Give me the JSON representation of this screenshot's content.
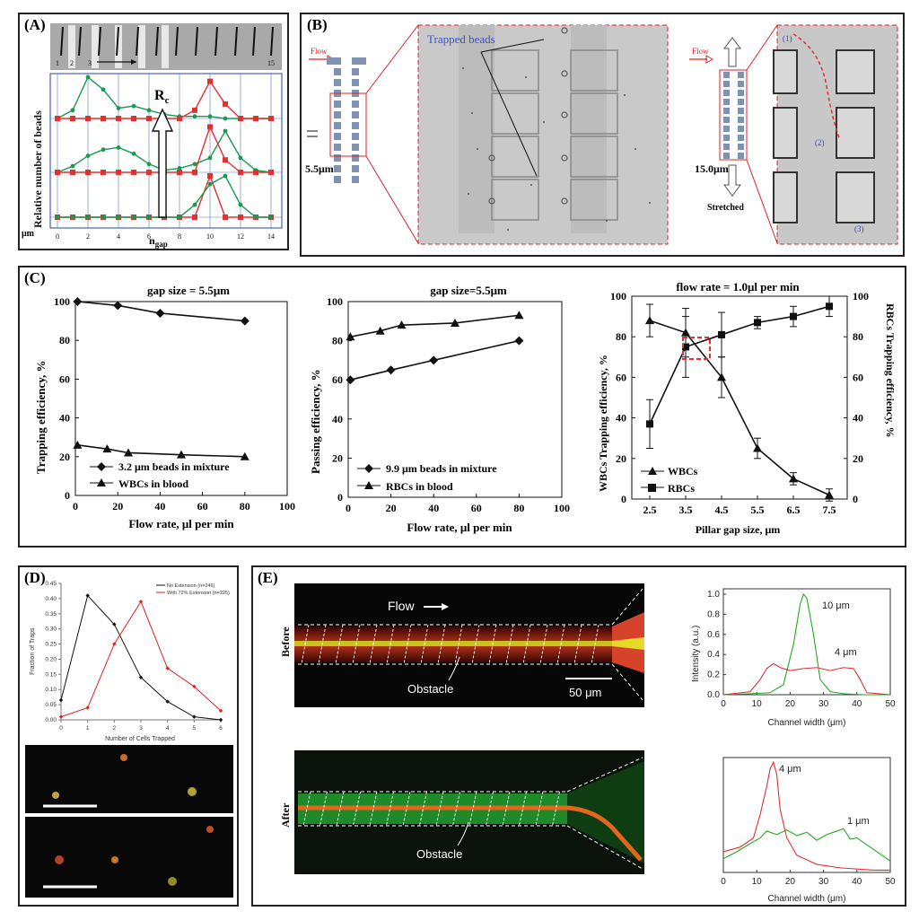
{
  "figure": {
    "panelA": {
      "label": "(A)",
      "strip_numbers": [
        "1",
        "2",
        "3",
        "15"
      ],
      "annotation": "R",
      "annotation_sub": "c",
      "ylabel": "Relative number of beads",
      "unit_label": "μm",
      "xlabel_main": "n",
      "xlabel_sub": "gap"
    },
    "panelB": {
      "label": "(B)",
      "flow_left": "Flow",
      "flow_right": "Flow",
      "gap_left": "5.5μm",
      "gap_right": "15.0μm",
      "stretched": "Stretched",
      "trapped_beads": "Trapped beads",
      "marks": [
        "(1)",
        "(2)",
        "(3)"
      ]
    },
    "panelC": {
      "label": "(C)",
      "chart1": {
        "title": "gap size = 5.5μm",
        "ylabel": "Trapping efficiency, %",
        "xlabel": "Flow rate, μl  per min",
        "legend": [
          "3.2 μm  beads in mixture",
          "WBCs in blood"
        ]
      },
      "chart2": {
        "title": "gap size=5.5μm",
        "ylabel": "Passing efficiency, %",
        "xlabel": "Flow rate, μl  per min",
        "legend": [
          "9.9 μm  beads in mixture",
          "RBCs in blood"
        ]
      },
      "chart3": {
        "title": "flow rate = 1.0μl  per min",
        "ylabel_left": "WBCs Trapping efficiency, %",
        "ylabel_right": "RBCs Trapping efficiency, %",
        "xlabel": "Pillar gap size, μm",
        "legend": [
          "WBCs",
          "RBCs"
        ]
      }
    },
    "panelD": {
      "label": "(D)",
      "ylabel": "Fraction of Traps",
      "xlabel": "Number of Cells Trapped",
      "legend": [
        "No Extension (n=246)",
        "With 72% Extension (n=225)"
      ]
    },
    "panelE": {
      "label": "(E)",
      "before": "Before",
      "after": "After",
      "flow": "Flow",
      "obstacle1": "Obstacle",
      "obstacle2": "Obstacle",
      "scale": "50 μm",
      "plot1": {
        "ylabel": "Intensity (a.u.)",
        "xlabel": "Channel width (μm)",
        "ann": [
          "10 μm",
          "4 μm"
        ]
      },
      "plot2": {
        "xlabel": "Channel width (μm)",
        "ann": [
          "4 μm",
          "1 μm"
        ]
      }
    }
  },
  "chart_data": [
    {
      "type": "line",
      "title": "gap size = 5.5μm",
      "xlabel": "Flow rate, μl  per min",
      "ylabel": "Trapping efficiency, %",
      "xlim": [
        0,
        100
      ],
      "ylim": [
        0,
        100
      ],
      "xticks": [
        0,
        20,
        40,
        60,
        80,
        100
      ],
      "yticks": [
        0,
        20,
        40,
        60,
        80,
        100
      ],
      "series": [
        {
          "name": "3.2 μm  beads in mixture",
          "marker": "diamond",
          "x": [
            1,
            20,
            40,
            80
          ],
          "y": [
            100,
            98,
            94,
            90
          ]
        },
        {
          "name": "WBCs in blood",
          "marker": "triangle",
          "x": [
            1,
            15,
            25,
            50,
            80
          ],
          "y": [
            26,
            24,
            22,
            21,
            20
          ]
        }
      ]
    },
    {
      "type": "line",
      "title": "gap size=5.5μm",
      "xlabel": "Flow rate, μl  per min",
      "ylabel": "Passing efficiency, %",
      "xlim": [
        0,
        100
      ],
      "ylim": [
        0,
        100
      ],
      "xticks": [
        0,
        20,
        40,
        60,
        80,
        100
      ],
      "yticks": [
        0,
        20,
        40,
        60,
        80,
        100
      ],
      "series": [
        {
          "name": "9.9 μm  beads in mixture",
          "marker": "diamond",
          "x": [
            1,
            20,
            40,
            80
          ],
          "y": [
            60,
            65,
            70,
            80
          ]
        },
        {
          "name": "RBCs in blood",
          "marker": "triangle",
          "x": [
            1,
            15,
            25,
            50,
            80
          ],
          "y": [
            82,
            85,
            88,
            89,
            93
          ]
        }
      ]
    },
    {
      "type": "line",
      "title": "flow rate = 1.0μl  per min",
      "xlabel": "Pillar gap size, μm",
      "ylabel": "WBCs Trapping efficiency, %",
      "ylabel_right": "RBCs Trapping efficiency, %",
      "xlim": [
        2,
        8
      ],
      "ylim": [
        0,
        100
      ],
      "xticks": [
        2.5,
        3.5,
        4.5,
        5.5,
        6.5,
        7.5
      ],
      "yticks": [
        0,
        20,
        40,
        60,
        80,
        100
      ],
      "series": [
        {
          "name": "WBCs",
          "marker": "triangle",
          "x": [
            2.5,
            3.5,
            4.5,
            5.5,
            6.5,
            7.5
          ],
          "y": [
            88,
            82,
            60,
            25,
            10,
            2
          ],
          "err": [
            8,
            12,
            10,
            5,
            3,
            3
          ]
        },
        {
          "name": "RBCs",
          "marker": "square",
          "x": [
            2.5,
            3.5,
            4.5,
            5.5,
            6.5,
            7.5
          ],
          "y": [
            37,
            75,
            81,
            87,
            90,
            95
          ],
          "err": [
            12,
            15,
            11,
            3,
            5,
            5
          ]
        }
      ]
    },
    {
      "type": "line",
      "xlabel": "Number of Cells Trapped",
      "ylabel": "Fraction of Traps",
      "xlim": [
        0,
        6
      ],
      "ylim": [
        0,
        0.45
      ],
      "xticks": [
        0,
        1,
        2,
        3,
        4,
        5,
        6
      ],
      "yticks": [
        0,
        0.05,
        0.1,
        0.15,
        0.2,
        0.25,
        0.3,
        0.35,
        0.4,
        0.45
      ],
      "series": [
        {
          "name": "No Extension (n=246)",
          "color": "#111111",
          "x": [
            0,
            1,
            2,
            3,
            4,
            5,
            6
          ],
          "y": [
            0.065,
            0.41,
            0.315,
            0.14,
            0.06,
            0.01,
            0.0
          ]
        },
        {
          "name": "With 72% Extension (n=225)",
          "color": "#e0221f",
          "x": [
            0,
            1,
            2,
            3,
            4,
            5,
            6
          ],
          "y": [
            0.01,
            0.04,
            0.25,
            0.39,
            0.17,
            0.11,
            0.03
          ]
        }
      ]
    },
    {
      "type": "line",
      "xlabel": "Channel width (μm)",
      "ylabel": "Intensity (a.u.)",
      "xlim": [
        0,
        50
      ],
      "ylim": [
        0,
        1.0
      ],
      "xticks": [
        0,
        10,
        20,
        30,
        40,
        50
      ],
      "yticks": [
        0.0,
        0.2,
        0.4,
        0.6,
        0.8,
        1.0
      ],
      "series": [
        {
          "color": "#22aa22",
          "x": [
            0,
            8,
            14,
            18,
            21,
            23,
            24,
            25,
            27,
            29,
            32,
            36,
            42,
            50
          ],
          "y": [
            0.0,
            0.01,
            0.02,
            0.1,
            0.5,
            0.9,
            1.0,
            0.96,
            0.6,
            0.15,
            0.03,
            0.01,
            0.0,
            0.0
          ]
        },
        {
          "color": "#e03030",
          "x": [
            0,
            8,
            11,
            13,
            15,
            17,
            20,
            24,
            28,
            32,
            36,
            39,
            41,
            43,
            50
          ],
          "y": [
            0.0,
            0.03,
            0.15,
            0.26,
            0.31,
            0.27,
            0.24,
            0.26,
            0.27,
            0.24,
            0.27,
            0.26,
            0.15,
            0.02,
            0.0
          ]
        }
      ]
    },
    {
      "type": "line",
      "xlabel": "Channel width (μm)",
      "xlim": [
        0,
        50
      ],
      "ylim": [
        0,
        1.0
      ],
      "xticks": [
        0,
        10,
        20,
        30,
        40,
        50
      ],
      "series": [
        {
          "color": "#e03030",
          "x": [
            0,
            5,
            9,
            11,
            13,
            14,
            15,
            16,
            17,
            19,
            22,
            28,
            35,
            45,
            50
          ],
          "y": [
            0.18,
            0.22,
            0.3,
            0.5,
            0.75,
            0.9,
            0.96,
            0.85,
            0.55,
            0.3,
            0.15,
            0.07,
            0.04,
            0.02,
            0.02
          ]
        },
        {
          "color": "#22aa22",
          "x": [
            0,
            4,
            8,
            11,
            13,
            16,
            19,
            22,
            25,
            28,
            31,
            34,
            36,
            38,
            40,
            42,
            44,
            46,
            48,
            50
          ],
          "y": [
            0.12,
            0.18,
            0.25,
            0.3,
            0.36,
            0.33,
            0.37,
            0.32,
            0.35,
            0.28,
            0.33,
            0.36,
            0.38,
            0.29,
            0.3,
            0.26,
            0.22,
            0.18,
            0.14,
            0.1
          ]
        }
      ]
    },
    {
      "type": "line",
      "xlabel": "n gap",
      "ylabel": "Relative number of beads",
      "xlim": [
        0,
        15
      ],
      "xticks": [
        0,
        2,
        4,
        6,
        8,
        10,
        12,
        14
      ],
      "series": [
        {
          "color": "#e03030",
          "baseline": 0,
          "x": [
            0,
            1,
            2,
            3,
            4,
            5,
            6,
            7,
            8,
            9,
            10,
            11,
            12,
            13,
            14
          ],
          "y": [
            0,
            0,
            0,
            0,
            0,
            0,
            0,
            0,
            0,
            0,
            1,
            0,
            0,
            0,
            0
          ]
        },
        {
          "color": "#1a9a50",
          "baseline": 0,
          "x": [
            0,
            1,
            2,
            3,
            4,
            5,
            6,
            7,
            8,
            9,
            10,
            11,
            12,
            13,
            14
          ],
          "y": [
            0,
            0,
            0,
            0,
            0,
            0,
            0,
            0,
            0,
            0.3,
            0.8,
            1.0,
            0.3,
            0,
            0
          ]
        },
        {
          "color": "#1a9a50",
          "baseline": 1,
          "x": [
            0,
            1,
            2,
            3,
            4,
            5,
            6,
            7,
            8,
            9,
            10,
            11,
            12,
            13,
            14
          ],
          "y": [
            0,
            0.15,
            0.4,
            0.55,
            0.6,
            0.45,
            0.2,
            0.05,
            0.1,
            0.2,
            0.35,
            1.0,
            0.35,
            0.05,
            0
          ]
        },
        {
          "color": "#e03030",
          "baseline": 1,
          "x": [
            0,
            1,
            2,
            3,
            4,
            5,
            6,
            7,
            8,
            9,
            10,
            11,
            12,
            13,
            14
          ],
          "y": [
            0,
            0,
            0,
            0,
            0,
            0,
            0,
            0,
            0,
            0,
            1.1,
            0.3,
            0,
            0,
            0
          ]
        },
        {
          "color": "#1a9a50",
          "baseline": 2,
          "x": [
            0,
            1,
            2,
            3,
            4,
            5,
            6,
            7,
            8,
            9,
            10,
            11,
            12,
            13,
            14
          ],
          "y": [
            0,
            0.2,
            1.0,
            0.7,
            0.25,
            0.3,
            0.2,
            0.1,
            0.05,
            0.05,
            0.05,
            0.0,
            0.0,
            0,
            0
          ]
        },
        {
          "color": "#e03030",
          "baseline": 2,
          "x": [
            0,
            1,
            2,
            3,
            4,
            5,
            6,
            7,
            8,
            9,
            10,
            11,
            12,
            13,
            14
          ],
          "y": [
            0,
            0,
            0,
            0,
            0,
            0,
            0,
            0,
            0,
            0.2,
            0.9,
            0.35,
            0,
            0,
            0
          ]
        }
      ]
    }
  ]
}
